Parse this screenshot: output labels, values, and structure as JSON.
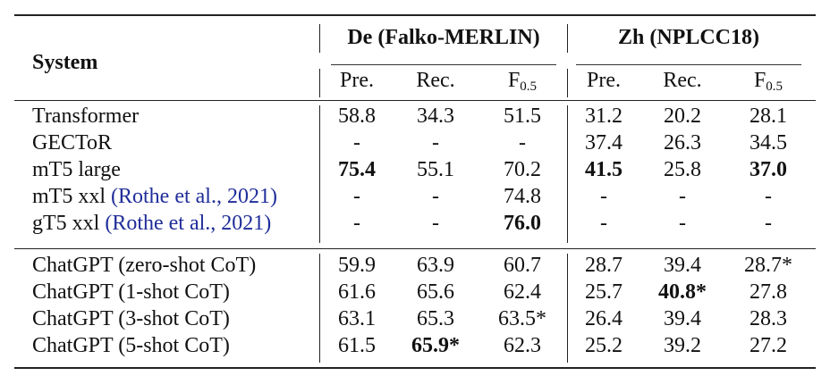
{
  "header": {
    "system": "System",
    "groups": [
      "De (Falko-MERLIN)",
      "Zh (NPLCC18)"
    ],
    "metrics": [
      "Pre.",
      "Rec.",
      "F",
      "Pre.",
      "Rec.",
      "F"
    ],
    "f_subscript": "0.5"
  },
  "rows": [
    {
      "system": "Transformer",
      "cite": "",
      "values": [
        "58.8",
        "34.3",
        "51.5",
        "31.2",
        "20.2",
        "28.1"
      ],
      "bold": []
    },
    {
      "system": "GECToR",
      "cite": "",
      "values": [
        "-",
        "-",
        "-",
        "37.4",
        "26.3",
        "34.5"
      ],
      "bold": []
    },
    {
      "system": "mT5 large",
      "cite": "",
      "values": [
        "75.4",
        "55.1",
        "70.2",
        "41.5",
        "25.8",
        "37.0"
      ],
      "bold": [
        0,
        3,
        5
      ]
    },
    {
      "system": "mT5 xxl ",
      "cite": "(Rothe et al., 2021)",
      "values": [
        "-",
        "-",
        "74.8",
        "-",
        "-",
        "-"
      ],
      "bold": []
    },
    {
      "system": "gT5 xxl ",
      "cite": "(Rothe et al., 2021)",
      "values": [
        "-",
        "-",
        "76.0",
        "-",
        "-",
        "-"
      ],
      "bold": [
        2
      ]
    },
    {
      "system": "ChatGPT (zero-shot CoT)",
      "cite": "",
      "values": [
        "59.9",
        "63.9",
        "60.7",
        "28.7",
        "39.4",
        "28.7*"
      ],
      "bold": []
    },
    {
      "system": "ChatGPT (1-shot CoT)",
      "cite": "",
      "values": [
        "61.6",
        "65.6",
        "62.4",
        "25.7",
        "40.8*",
        "27.8"
      ],
      "bold": [
        4
      ]
    },
    {
      "system": "ChatGPT (3-shot CoT)",
      "cite": "",
      "values": [
        "63.1",
        "65.3",
        "63.5*",
        "26.4",
        "39.4",
        "28.3"
      ],
      "bold": []
    },
    {
      "system": "ChatGPT (5-shot CoT)",
      "cite": "",
      "values": [
        "61.5",
        "65.9*",
        "62.3",
        "25.2",
        "39.2",
        "27.2"
      ],
      "bold": [
        1
      ]
    }
  ]
}
